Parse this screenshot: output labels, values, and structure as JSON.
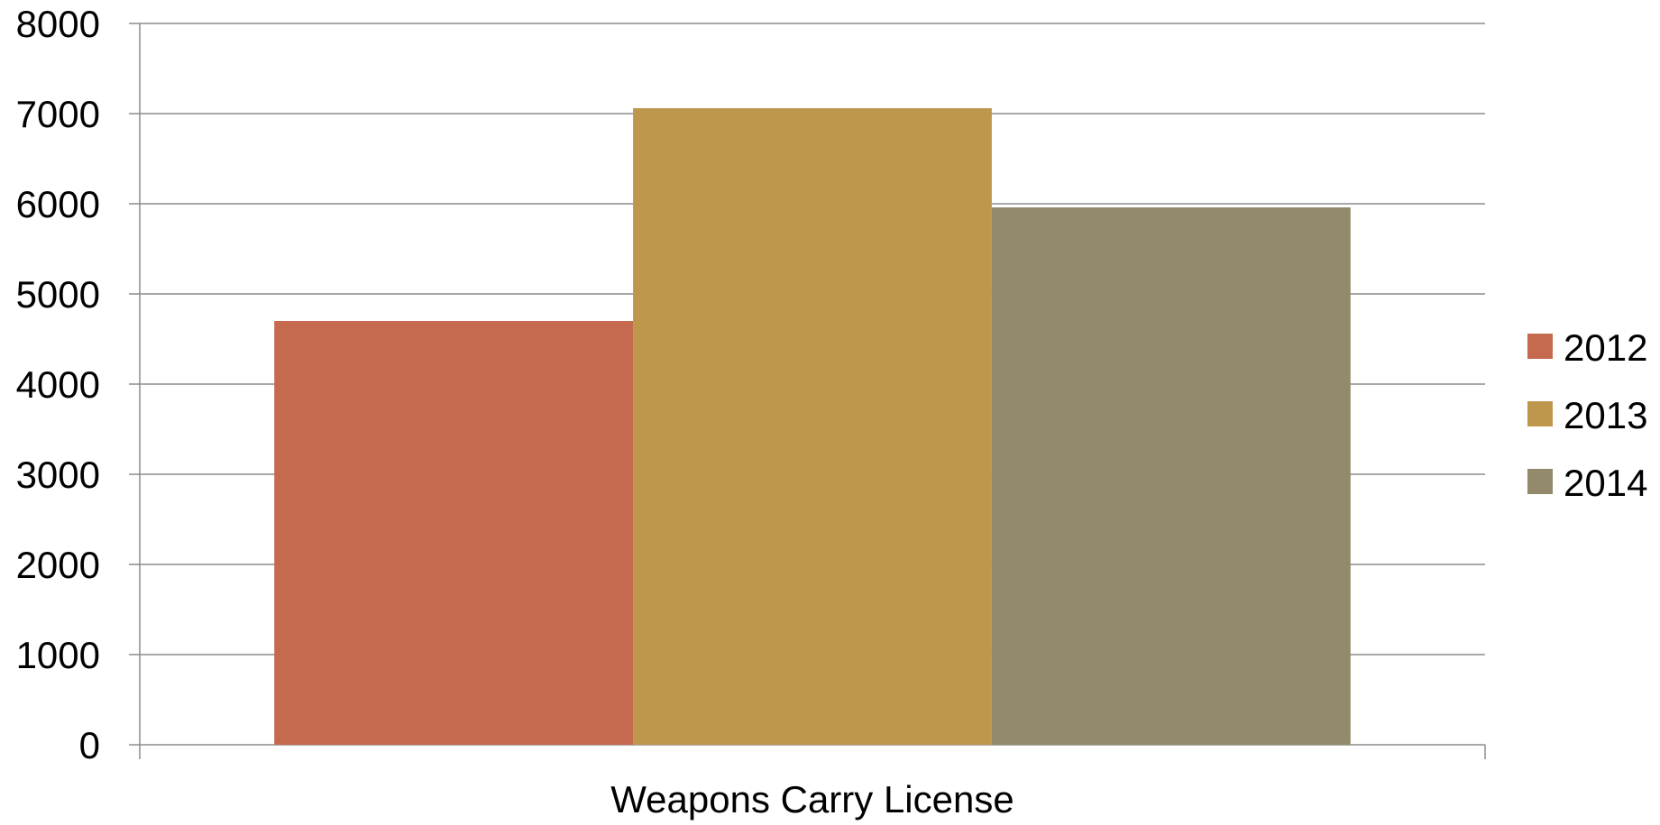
{
  "chart_data": {
    "type": "bar",
    "categories": [
      "Weapons Carry License"
    ],
    "series": [
      {
        "name": "2012",
        "values": [
          4700
        ],
        "color": "#C5694F"
      },
      {
        "name": "2013",
        "values": [
          7060
        ],
        "color": "#BF974C"
      },
      {
        "name": "2014",
        "values": [
          5960
        ],
        "color": "#938A6C"
      }
    ],
    "ylim": [
      0,
      8000
    ],
    "yticks": [
      "0",
      "1000",
      "2000",
      "3000",
      "4000",
      "5000",
      "6000",
      "7000",
      "8000"
    ],
    "grid": true,
    "legend_position": "right",
    "title": "",
    "xlabel": "",
    "ylabel": ""
  },
  "colors": {
    "gridline": "#8C8C8C",
    "axis": "#8C8C8C"
  }
}
